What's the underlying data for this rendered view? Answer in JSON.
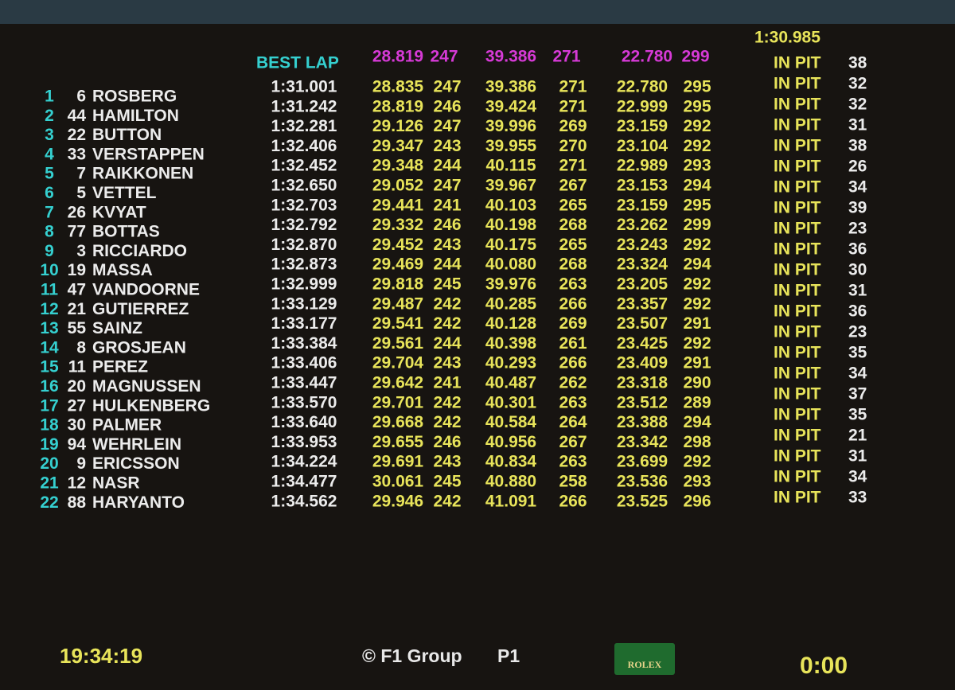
{
  "header": {
    "best_label": "BEST LAP",
    "best_sectors": [
      "28.819",
      "247",
      "39.386",
      "271",
      "22.780",
      "299"
    ],
    "best_time": "1:30.985"
  },
  "table": {
    "rows": [
      [
        "1",
        "6",
        "ROSBERG",
        "1:31.001",
        "28.835",
        "247",
        "39.386",
        "271",
        "22.780",
        "295"
      ],
      [
        "2",
        "44",
        "HAMILTON",
        "1:31.242",
        "28.819",
        "246",
        "39.424",
        "271",
        "22.999",
        "295"
      ],
      [
        "3",
        "22",
        "BUTTON",
        "1:32.281",
        "29.126",
        "247",
        "39.996",
        "269",
        "23.159",
        "292"
      ],
      [
        "4",
        "33",
        "VERSTAPPEN",
        "1:32.406",
        "29.347",
        "243",
        "39.955",
        "270",
        "23.104",
        "292"
      ],
      [
        "5",
        "7",
        "RAIKKONEN",
        "1:32.452",
        "29.348",
        "244",
        "40.115",
        "271",
        "22.989",
        "293"
      ],
      [
        "6",
        "5",
        "VETTEL",
        "1:32.650",
        "29.052",
        "247",
        "39.967",
        "267",
        "23.153",
        "294"
      ],
      [
        "7",
        "26",
        "KVYAT",
        "1:32.703",
        "29.441",
        "241",
        "40.103",
        "265",
        "23.159",
        "295"
      ],
      [
        "8",
        "77",
        "BOTTAS",
        "1:32.792",
        "29.332",
        "246",
        "40.198",
        "268",
        "23.262",
        "299"
      ],
      [
        "9",
        "3",
        "RICCIARDO",
        "1:32.870",
        "29.452",
        "243",
        "40.175",
        "265",
        "23.243",
        "292"
      ],
      [
        "10",
        "19",
        "MASSA",
        "1:32.873",
        "29.469",
        "244",
        "40.080",
        "268",
        "23.324",
        "294"
      ],
      [
        "11",
        "47",
        "VANDOORNE",
        "1:32.999",
        "29.818",
        "245",
        "39.976",
        "263",
        "23.205",
        "292"
      ],
      [
        "12",
        "21",
        "GUTIERREZ",
        "1:33.129",
        "29.487",
        "242",
        "40.285",
        "266",
        "23.357",
        "292"
      ],
      [
        "13",
        "55",
        "SAINZ",
        "1:33.177",
        "29.541",
        "242",
        "40.128",
        "269",
        "23.507",
        "291"
      ],
      [
        "14",
        "8",
        "GROSJEAN",
        "1:33.384",
        "29.561",
        "244",
        "40.398",
        "261",
        "23.425",
        "292"
      ],
      [
        "15",
        "11",
        "PEREZ",
        "1:33.406",
        "29.704",
        "243",
        "40.293",
        "266",
        "23.409",
        "291"
      ],
      [
        "16",
        "20",
        "MAGNUSSEN",
        "1:33.447",
        "29.642",
        "241",
        "40.487",
        "262",
        "23.318",
        "290"
      ],
      [
        "17",
        "27",
        "HULKENBERG",
        "1:33.570",
        "29.701",
        "242",
        "40.301",
        "263",
        "23.512",
        "289"
      ],
      [
        "18",
        "30",
        "PALMER",
        "1:33.640",
        "29.668",
        "242",
        "40.584",
        "264",
        "23.388",
        "294"
      ],
      [
        "19",
        "94",
        "WEHRLEIN",
        "1:33.953",
        "29.655",
        "246",
        "40.956",
        "267",
        "23.342",
        "298"
      ],
      [
        "20",
        "9",
        "ERICSSON",
        "1:34.224",
        "29.691",
        "243",
        "40.834",
        "263",
        "23.699",
        "292"
      ],
      [
        "21",
        "12",
        "NASR",
        "1:34.477",
        "30.061",
        "245",
        "40.880",
        "258",
        "23.536",
        "293"
      ],
      [
        "22",
        "88",
        "HARYANTO",
        "1:34.562",
        "29.946",
        "242",
        "41.091",
        "266",
        "23.525",
        "296"
      ]
    ]
  },
  "pit_column": [
    [
      "IN PIT",
      "38"
    ],
    [
      "IN PIT",
      "32"
    ],
    [
      "IN PIT",
      "32"
    ],
    [
      "IN PIT",
      "31"
    ],
    [
      "IN PIT",
      "38"
    ],
    [
      "IN PIT",
      "26"
    ],
    [
      "IN PIT",
      "34"
    ],
    [
      "IN PIT",
      "39"
    ],
    [
      "IN PIT",
      "23"
    ],
    [
      "IN PIT",
      "36"
    ],
    [
      "IN PIT",
      "30"
    ],
    [
      "IN PIT",
      "31"
    ],
    [
      "IN PIT",
      "36"
    ],
    [
      "IN PIT",
      "23"
    ],
    [
      "IN PIT",
      "35"
    ],
    [
      "IN PIT",
      "34"
    ],
    [
      "IN PIT",
      "37"
    ],
    [
      "IN PIT",
      "35"
    ],
    [
      "IN PIT",
      "21"
    ],
    [
      "IN PIT",
      "31"
    ],
    [
      "IN PIT",
      "34"
    ],
    [
      "IN PIT",
      "33"
    ]
  ],
  "footer": {
    "clock": "19:34:19",
    "copyright": "© F1 Group",
    "session": "P1",
    "sponsor": "ROLEX",
    "remaining": "0:00"
  }
}
